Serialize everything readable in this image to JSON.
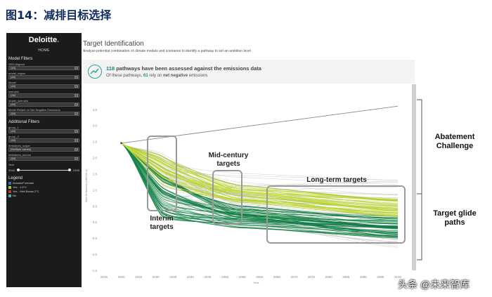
{
  "figure_title": "图14：减排目标选择",
  "sidebar": {
    "logo": "Deloitte",
    "logo_dot": ".",
    "home": "HOME",
    "model_filters_title": "Model Filters",
    "filters": [
      {
        "label": "SDG Aligned",
        "value": "(All)"
      },
      {
        "label": "model_region",
        "value": "(All)"
      },
      {
        "label": "Model",
        "value": "(All)"
      },
      {
        "label": "scenario",
        "value": "(All)"
      },
      {
        "label": "model_scenario",
        "value": "(All)"
      },
      {
        "label": "Model Reliant on Net Negative Emissions",
        "value": "(All)"
      }
    ],
    "additional_filters_title": "Additional Filters",
    "additional_filters": [
      {
        "label": "group_1",
        "value": "(All)"
      },
      {
        "label": "group_2",
        "value": "(All)"
      },
      {
        "label": "emissions_scope",
        "value": "(Multiple values)"
      },
      {
        "label": "emissions_source",
        "value": "(All)"
      }
    ],
    "year_label": "Year",
    "year_min": "2016",
    "year_max": "2100",
    "legend_title": "Legend",
    "legend": [
      {
        "label": "Actuals/Forecast",
        "color": "#3f6fb5"
      },
      {
        "label": "Yes - 1.5°C",
        "color": "#9bc53d"
      },
      {
        "label": "Yes - Well Below 2°C",
        "color": "#c0392b"
      },
      {
        "label": "No",
        "color": "#5aa9a0"
      }
    ]
  },
  "main": {
    "title": "Target Identification",
    "subtitle": "Analyze potential combination of climate models and scenarios to identify a pathway to set an ambition level",
    "banner_count": "118",
    "banner_line1_rest": " pathways have been assessed against the emissions data",
    "banner_line2_pre": "Of these pathways, ",
    "banner_count2": "61",
    "banner_line2_mid": " rely on ",
    "banner_line2_bold": "net negative",
    "banner_line2_post": " emissions"
  },
  "annotations": {
    "interim": [
      "Interim",
      "targets"
    ],
    "mid_century": [
      "Mid-century",
      "targets"
    ],
    "long_term": "Long-term targets",
    "abatement": [
      "Abatement",
      "Challenge"
    ],
    "glide": [
      "Target glide",
      "paths"
    ]
  },
  "chart_data": {
    "type": "line",
    "ylabel": "Total Emissions (MtCO2-e)",
    "xlabel": "Year",
    "x_ticks": [
      "2015",
      "2020",
      "2025",
      "2030",
      "2035",
      "2040",
      "2045",
      "2050",
      "2055",
      "2060",
      "2065",
      "2070",
      "2075",
      "2080",
      "2085",
      "2090",
      "2095",
      "2100"
    ],
    "y_ticks": [
      "3.5",
      "3.0",
      "2.5",
      "2.0",
      "1.5",
      "1.0",
      "0.5",
      "0.0",
      "-0.5",
      "-1.0",
      "-1.5"
    ],
    "xlim": [
      2015,
      2100
    ],
    "ylim": [
      -1.5,
      3.8
    ],
    "start_point": {
      "x": 2020,
      "y": 2.45
    },
    "baseline_series": {
      "name": "",
      "x": [
        2020,
        2100
      ],
      "y": [
        2.45,
        3.6
      ]
    }
  },
  "watermark": "头条 @未来智库"
}
